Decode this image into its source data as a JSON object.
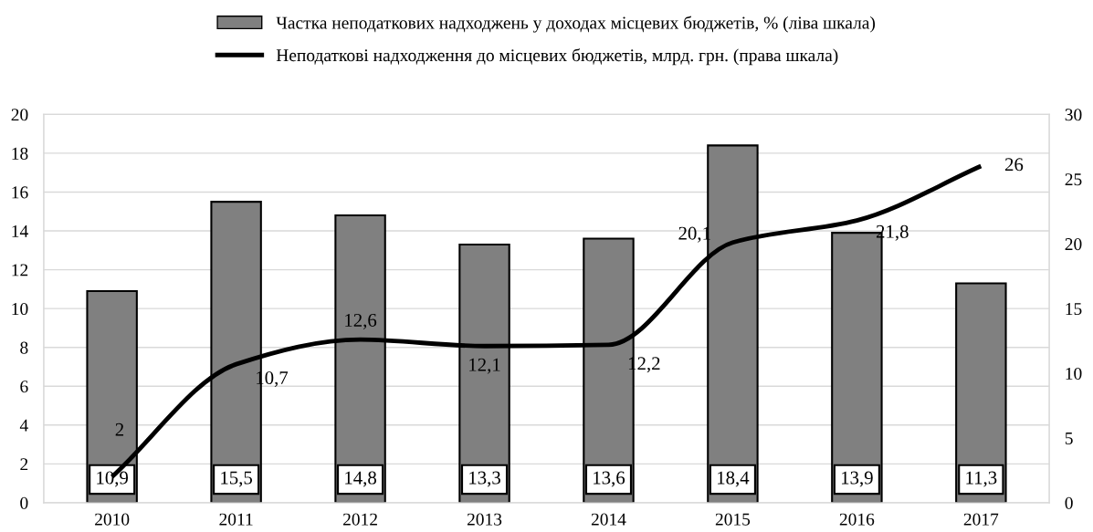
{
  "chart_data": {
    "type": "bar",
    "categories": [
      "2010",
      "2011",
      "2012",
      "2013",
      "2014",
      "2015",
      "2016",
      "2017"
    ],
    "series": [
      {
        "name": "Частка неподаткових надходжень у доходах місцевих бюджетів, % (ліва шкала)",
        "color": "#808080",
        "values": [
          10.9,
          15.5,
          14.8,
          13.3,
          13.6,
          18.4,
          13.9,
          11.3
        ],
        "value_labels": [
          "10,9",
          "15,5",
          "14,8",
          "13,3",
          "13,6",
          "18,4",
          "13,9",
          "11,3"
        ]
      },
      {
        "name": "Неподаткові надходження до місцевих бюджетів, млрд. грн. (права шкала)",
        "type": "line",
        "axis": "y2",
        "color": "#000000",
        "values": [
          2,
          10.7,
          12.6,
          12.1,
          12.2,
          20.1,
          21.8,
          26
        ],
        "value_labels": [
          "2",
          "10,7",
          "12,6",
          "12,1",
          "12,2",
          "20,1",
          "21,8",
          "26"
        ]
      }
    ],
    "ylim": [
      0,
      20
    ],
    "yticks": [
      0,
      2,
      4,
      6,
      8,
      10,
      12,
      14,
      16,
      18,
      20
    ],
    "y2lim": [
      0,
      30
    ],
    "y2ticks": [
      0,
      5,
      10,
      15,
      20,
      25,
      30
    ],
    "grid": "y",
    "legend": "top",
    "marker": "none",
    "line_style": "solid"
  }
}
